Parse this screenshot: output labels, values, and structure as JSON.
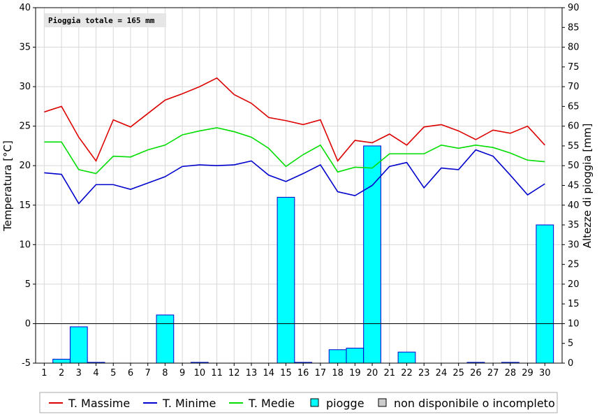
{
  "chart_data": {
    "type": "bar",
    "annotation": "Pioggia totale = 165 mm",
    "ylabel": "Temperatura [°C]",
    "y2label": "Altezze di pioggia [mm]",
    "ylim": [
      -5,
      40
    ],
    "y2lim": [
      0,
      90
    ],
    "yticks": [
      "-5",
      "0",
      "5",
      "10",
      "15",
      "20",
      "25",
      "30",
      "35",
      "40"
    ],
    "y2ticks": [
      "0",
      "5",
      "10",
      "15",
      "20",
      "25",
      "30",
      "35",
      "40",
      "45",
      "50",
      "55",
      "60",
      "65",
      "70",
      "75",
      "80",
      "85",
      "90"
    ],
    "x": [
      "1",
      "2",
      "3",
      "4",
      "5",
      "6",
      "7",
      "8",
      "9",
      "10",
      "11",
      "12",
      "13",
      "14",
      "15",
      "16",
      "17",
      "18",
      "19",
      "20",
      "21",
      "22",
      "23",
      "24",
      "25",
      "26",
      "27",
      "28",
      "29",
      "30"
    ],
    "grid": true,
    "legend_position": "bottom",
    "series": [
      {
        "name": "T. Massime",
        "type": "line",
        "axis": "left",
        "color": "#dd0000",
        "values": [
          26.8,
          27.5,
          23.6,
          20.6,
          25.8,
          24.9,
          26.6,
          28.3,
          29.1,
          30.0,
          31.1,
          29.0,
          27.9,
          26.1,
          25.7,
          25.2,
          25.8,
          20.6,
          23.2,
          22.9,
          24.0,
          22.6,
          24.9,
          25.2,
          24.4,
          23.3,
          24.5,
          24.1,
          25.0,
          22.6
        ]
      },
      {
        "name": "T. Minime",
        "type": "line",
        "axis": "left",
        "color": "#0000cc",
        "values": [
          19.1,
          18.9,
          15.2,
          17.6,
          17.6,
          17.0,
          17.8,
          18.6,
          19.9,
          20.1,
          20.0,
          20.1,
          20.6,
          18.8,
          18.0,
          19.0,
          20.1,
          16.7,
          16.2,
          17.5,
          19.9,
          20.4,
          17.2,
          19.7,
          19.5,
          22.0,
          21.2,
          18.8,
          16.3,
          17.7
        ]
      },
      {
        "name": "T. Medie",
        "type": "line",
        "axis": "left",
        "color": "#00dd00",
        "values": [
          23.0,
          23.0,
          19.5,
          19.0,
          21.2,
          21.1,
          22.0,
          22.6,
          23.9,
          24.4,
          24.8,
          24.3,
          23.6,
          22.2,
          19.9,
          21.4,
          22.6,
          19.2,
          19.8,
          19.7,
          21.5,
          21.5,
          21.5,
          22.6,
          22.2,
          22.6,
          22.3,
          21.6,
          20.7,
          20.5
        ]
      },
      {
        "name": "piogge",
        "type": "bar",
        "axis": "right",
        "color": "#00ffff",
        "values": [
          0,
          1.0,
          9.2,
          0.2,
          0,
          0,
          0,
          12.2,
          0,
          0.2,
          0,
          0,
          0,
          0,
          42.0,
          0.2,
          0,
          3.4,
          3.8,
          55.0,
          0,
          2.8,
          0,
          0,
          0,
          0.2,
          0,
          0.2,
          0,
          35.0
        ]
      }
    ],
    "legend": [
      "T. Massime",
      "T. Minime",
      "T. Medie",
      "piogge",
      "non disponibile o incompleto"
    ],
    "legend_colors": [
      "#dd0000",
      "#0000cc",
      "#00dd00",
      "#00ffff",
      "#cccccc"
    ]
  }
}
